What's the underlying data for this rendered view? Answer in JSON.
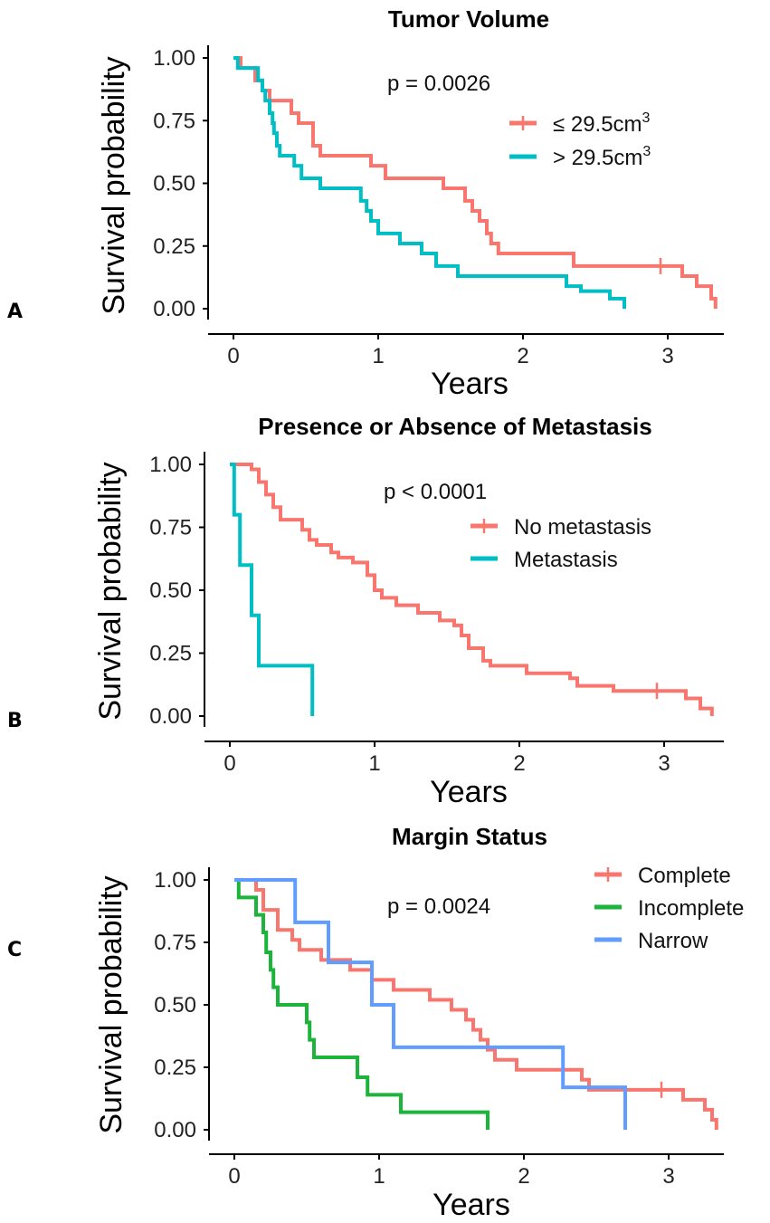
{
  "chart_data": [
    {
      "type": "line",
      "subtype": "kaplan-meier",
      "panel_label": "A",
      "title": "Tumor Volume",
      "xlabel": "Years",
      "ylabel": "Survival probability",
      "xlim": [
        0,
        3.35
      ],
      "ylim": [
        0,
        1
      ],
      "xticks": [
        "0",
        "1",
        "2",
        "3"
      ],
      "yticks": [
        "0.00",
        "0.25",
        "0.50",
        "0.75",
        "1.00"
      ],
      "pvalue": "p = 0.0026",
      "legend_position": "right",
      "series": [
        {
          "name": "≤ 29.5cm³",
          "label_base": "≤ 29.5cm",
          "label_sup": "3",
          "color": "#F8766D",
          "censored": [
            2.95
          ],
          "steps": [
            [
              0,
              1
            ],
            [
              0.05,
              0.96
            ],
            [
              0.15,
              0.91
            ],
            [
              0.2,
              0.87
            ],
            [
              0.25,
              0.83
            ],
            [
              0.4,
              0.78
            ],
            [
              0.45,
              0.74
            ],
            [
              0.55,
              0.65
            ],
            [
              0.6,
              0.61
            ],
            [
              0.95,
              0.57
            ],
            [
              1.05,
              0.52
            ],
            [
              1.45,
              0.48
            ],
            [
              1.6,
              0.43
            ],
            [
              1.65,
              0.39
            ],
            [
              1.7,
              0.35
            ],
            [
              1.75,
              0.3
            ],
            [
              1.78,
              0.26
            ],
            [
              1.83,
              0.22
            ],
            [
              2.35,
              0.17
            ],
            [
              3.1,
              0.13
            ],
            [
              3.2,
              0.09
            ],
            [
              3.3,
              0.04
            ],
            [
              3.33,
              0
            ]
          ]
        },
        {
          "name": "> 29.5cm³",
          "label_base": "> 29.5cm",
          "label_sup": "3",
          "color": "#00BFC4",
          "censored": [],
          "steps": [
            [
              0,
              1
            ],
            [
              0.03,
              0.96
            ],
            [
              0.17,
              0.91
            ],
            [
              0.2,
              0.87
            ],
            [
              0.22,
              0.83
            ],
            [
              0.25,
              0.78
            ],
            [
              0.27,
              0.74
            ],
            [
              0.28,
              0.7
            ],
            [
              0.3,
              0.65
            ],
            [
              0.32,
              0.61
            ],
            [
              0.42,
              0.57
            ],
            [
              0.47,
              0.52
            ],
            [
              0.6,
              0.48
            ],
            [
              0.88,
              0.43
            ],
            [
              0.92,
              0.39
            ],
            [
              0.95,
              0.35
            ],
            [
              1.0,
              0.3
            ],
            [
              1.15,
              0.26
            ],
            [
              1.3,
              0.22
            ],
            [
              1.4,
              0.17
            ],
            [
              1.55,
              0.13
            ],
            [
              2.3,
              0.09
            ],
            [
              2.4,
              0.07
            ],
            [
              2.6,
              0.04
            ],
            [
              2.7,
              0
            ]
          ]
        }
      ]
    },
    {
      "type": "line",
      "subtype": "kaplan-meier",
      "panel_label": "B",
      "title": "Presence or Absence of Metastasis",
      "xlabel": "Years",
      "ylabel": "Survival probability",
      "xlim": [
        0,
        3.35
      ],
      "ylim": [
        0,
        1
      ],
      "xticks": [
        "0",
        "1",
        "2",
        "3"
      ],
      "yticks": [
        "0.00",
        "0.25",
        "0.50",
        "0.75",
        "1.00"
      ],
      "pvalue": "p < 0.0001",
      "legend_position": "right",
      "series": [
        {
          "name": "No metastasis",
          "label_base": "No metastasis",
          "color": "#F8766D",
          "censored": [
            2.95
          ],
          "steps": [
            [
              0,
              1
            ],
            [
              0.15,
              0.98
            ],
            [
              0.2,
              0.93
            ],
            [
              0.25,
              0.88
            ],
            [
              0.3,
              0.83
            ],
            [
              0.35,
              0.78
            ],
            [
              0.5,
              0.74
            ],
            [
              0.55,
              0.7
            ],
            [
              0.6,
              0.68
            ],
            [
              0.7,
              0.65
            ],
            [
              0.75,
              0.63
            ],
            [
              0.85,
              0.61
            ],
            [
              0.95,
              0.56
            ],
            [
              1.0,
              0.5
            ],
            [
              1.05,
              0.47
            ],
            [
              1.15,
              0.44
            ],
            [
              1.3,
              0.41
            ],
            [
              1.45,
              0.38
            ],
            [
              1.55,
              0.36
            ],
            [
              1.6,
              0.32
            ],
            [
              1.65,
              0.27
            ],
            [
              1.75,
              0.22
            ],
            [
              1.8,
              0.2
            ],
            [
              2.05,
              0.17
            ],
            [
              2.35,
              0.15
            ],
            [
              2.4,
              0.12
            ],
            [
              2.65,
              0.1
            ],
            [
              3.15,
              0.07
            ],
            [
              3.25,
              0.03
            ],
            [
              3.33,
              0
            ]
          ]
        },
        {
          "name": "Metastasis",
          "label_base": "Metastasis",
          "color": "#00BFC4",
          "censored": [],
          "steps": [
            [
              0,
              1
            ],
            [
              0.03,
              0.8
            ],
            [
              0.07,
              0.6
            ],
            [
              0.15,
              0.4
            ],
            [
              0.2,
              0.2
            ],
            [
              0.57,
              0
            ]
          ]
        }
      ]
    },
    {
      "type": "line",
      "subtype": "kaplan-meier",
      "panel_label": "C",
      "title": "Margin Status",
      "xlabel": "Years",
      "ylabel": "Survival probability",
      "xlim": [
        0,
        3.35
      ],
      "ylim": [
        0,
        1
      ],
      "xticks": [
        "0",
        "1",
        "2",
        "3"
      ],
      "yticks": [
        "0.00",
        "0.25",
        "0.50",
        "0.75",
        "1.00"
      ],
      "pvalue": "p = 0.0024",
      "legend_position": "top-right",
      "series": [
        {
          "name": "Complete",
          "label_base": "Complete",
          "color": "#F8766D",
          "censored": [
            2.95
          ],
          "steps": [
            [
              0,
              1
            ],
            [
              0.15,
              0.96
            ],
            [
              0.2,
              0.88
            ],
            [
              0.3,
              0.8
            ],
            [
              0.4,
              0.76
            ],
            [
              0.45,
              0.72
            ],
            [
              0.6,
              0.68
            ],
            [
              0.8,
              0.64
            ],
            [
              0.95,
              0.6
            ],
            [
              1.1,
              0.56
            ],
            [
              1.35,
              0.52
            ],
            [
              1.5,
              0.48
            ],
            [
              1.6,
              0.44
            ],
            [
              1.65,
              0.4
            ],
            [
              1.7,
              0.36
            ],
            [
              1.75,
              0.32
            ],
            [
              1.8,
              0.28
            ],
            [
              1.95,
              0.24
            ],
            [
              2.4,
              0.2
            ],
            [
              2.45,
              0.16
            ],
            [
              3.1,
              0.12
            ],
            [
              3.25,
              0.08
            ],
            [
              3.3,
              0.04
            ],
            [
              3.33,
              0
            ]
          ]
        },
        {
          "name": "Incomplete",
          "label_base": "Incomplete",
          "color": "#1DB43C",
          "censored": [],
          "steps": [
            [
              0,
              1
            ],
            [
              0.03,
              0.93
            ],
            [
              0.15,
              0.86
            ],
            [
              0.2,
              0.79
            ],
            [
              0.22,
              0.71
            ],
            [
              0.25,
              0.64
            ],
            [
              0.27,
              0.57
            ],
            [
              0.3,
              0.5
            ],
            [
              0.5,
              0.43
            ],
            [
              0.52,
              0.36
            ],
            [
              0.55,
              0.29
            ],
            [
              0.85,
              0.21
            ],
            [
              0.92,
              0.14
            ],
            [
              1.15,
              0.07
            ],
            [
              1.75,
              0
            ]
          ]
        },
        {
          "name": "Narrow",
          "label_base": "Narrow",
          "color": "#619CFF",
          "censored": [],
          "steps": [
            [
              0,
              1
            ],
            [
              0.42,
              0.83
            ],
            [
              0.65,
              0.67
            ],
            [
              0.95,
              0.5
            ],
            [
              1.1,
              0.33
            ],
            [
              2.27,
              0.17
            ],
            [
              2.7,
              0
            ]
          ]
        }
      ]
    }
  ]
}
